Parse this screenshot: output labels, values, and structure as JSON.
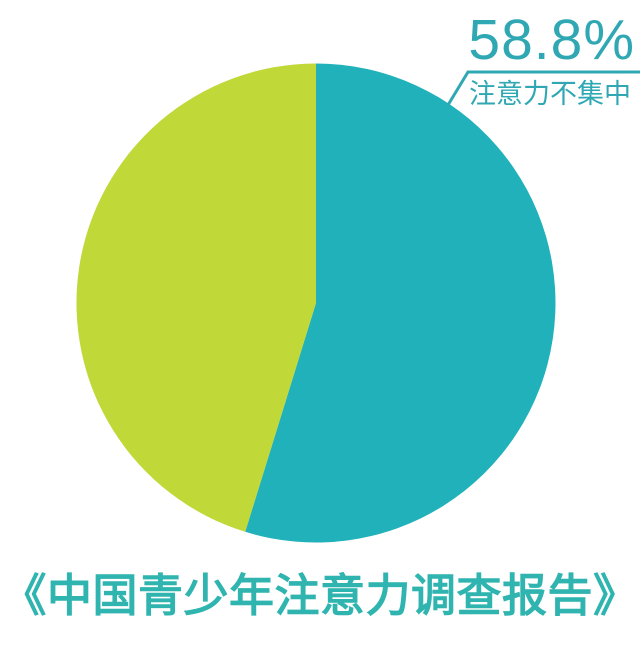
{
  "colors": {
    "callout": "#2fa8b3",
    "title": "#2fb4b0",
    "slice_focus": "#20b1ba",
    "slice_rest": "#c0d838",
    "background": "#ffffff"
  },
  "callout": {
    "value_label": "58.8%",
    "text": "注意力不集中"
  },
  "footer": {
    "title": "《中国青少年注意力调查报告》"
  },
  "chart_data": {
    "type": "pie",
    "title": "《中国青少年注意力调查报告》",
    "slices": [
      {
        "label": "注意力不集中",
        "value": 58.8,
        "color": "#20b1ba"
      },
      {
        "label": "",
        "value": 41.2,
        "color": "#c0d838"
      }
    ],
    "annotations": [
      {
        "text": "58.8%",
        "position": "top-right"
      },
      {
        "text": "注意力不集中",
        "position": "top-right-below-line"
      }
    ],
    "layout": {
      "start_angle_deg": 0,
      "clockwise": true,
      "drawn_sweep_deg": 197.2,
      "legend": "none",
      "labels": "external-callout"
    }
  }
}
